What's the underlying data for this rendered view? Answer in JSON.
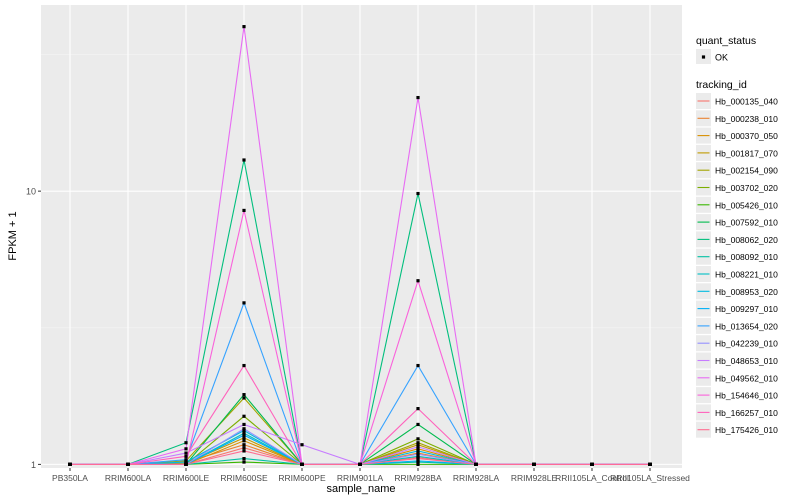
{
  "chart_data": {
    "type": "line",
    "title": "",
    "xlabel": "sample_name",
    "ylabel": "FPKM + 1",
    "y_scale": "log10",
    "ylim": [
      0.97,
      48
    ],
    "y_ticks": [
      1,
      10
    ],
    "y_tick_labels": [
      "1",
      "10"
    ],
    "grid": true,
    "legend_position": "right",
    "categories": [
      "PB350LA",
      "RRIM600LA",
      "RRIM600LE",
      "RRIM600SE",
      "RRIM600PE",
      "RRIM901LA",
      "RRIM928BA",
      "RRIM928LA",
      "RRIM928LE",
      "RRII105LA_Control",
      "RRII105LA_Stressed"
    ],
    "legend": {
      "quant_status_title": "quant_status",
      "quant_status_items": [
        "OK"
      ],
      "tracking_title": "tracking_id"
    },
    "series": [
      {
        "name": "Hb_000135_040",
        "color": "#F8766D",
        "values": [
          1,
          1,
          1.0,
          1.15,
          1,
          1,
          1.06,
          1,
          1,
          1,
          1
        ]
      },
      {
        "name": "Hb_000238_010",
        "color": "#EA8331",
        "values": [
          1,
          1,
          1.02,
          1.18,
          1,
          1,
          1.1,
          1,
          1,
          1,
          1
        ]
      },
      {
        "name": "Hb_000370_050",
        "color": "#D89000",
        "values": [
          1,
          1,
          1.0,
          1.22,
          1,
          1,
          1.14,
          1,
          1,
          1,
          1
        ]
      },
      {
        "name": "Hb_001817_070",
        "color": "#C09B00",
        "values": [
          1,
          1,
          1.01,
          1.25,
          1,
          1,
          1.18,
          1,
          1,
          1,
          1
        ]
      },
      {
        "name": "Hb_002154_090",
        "color": "#A3A500",
        "values": [
          1,
          1,
          1.03,
          1.75,
          1,
          1,
          1.2,
          1,
          1,
          1,
          1
        ]
      },
      {
        "name": "Hb_003702_020",
        "color": "#7CAE00",
        "values": [
          1,
          1,
          1.0,
          1.5,
          1,
          1,
          1.24,
          1,
          1,
          1,
          1
        ]
      },
      {
        "name": "Hb_005426_010",
        "color": "#39B600",
        "values": [
          1,
          1,
          1.0,
          1.02,
          1,
          1,
          1.0,
          1,
          1,
          1,
          1
        ]
      },
      {
        "name": "Hb_007592_010",
        "color": "#00BB4E",
        "values": [
          1,
          1,
          1.0,
          1.8,
          1,
          1,
          1.4,
          1,
          1,
          1,
          1
        ]
      },
      {
        "name": "Hb_008062_020",
        "color": "#00BF7D",
        "values": [
          1,
          1,
          1.2,
          13.0,
          1,
          1,
          9.8,
          1,
          1,
          1,
          1
        ]
      },
      {
        "name": "Hb_008092_010",
        "color": "#00C1A3",
        "values": [
          1,
          1,
          1.0,
          1.05,
          1,
          1,
          1.02,
          1,
          1,
          1,
          1
        ]
      },
      {
        "name": "Hb_008221_010",
        "color": "#00BFC4",
        "values": [
          1,
          1,
          1.0,
          1.3,
          1,
          1,
          1.07,
          1,
          1,
          1,
          1
        ]
      },
      {
        "name": "Hb_008953_020",
        "color": "#00BAE0",
        "values": [
          1,
          1,
          1.02,
          1.33,
          1,
          1,
          1.12,
          1,
          1,
          1,
          1
        ]
      },
      {
        "name": "Hb_009297_010",
        "color": "#00B0F6",
        "values": [
          1,
          1,
          1.0,
          1.28,
          1,
          1,
          1.03,
          1,
          1,
          1,
          1
        ]
      },
      {
        "name": "Hb_013654_020",
        "color": "#35A2FF",
        "values": [
          1,
          1,
          1.04,
          3.9,
          1,
          1,
          2.3,
          1,
          1,
          1,
          1
        ]
      },
      {
        "name": "Hb_042239_010",
        "color": "#9590FF",
        "values": [
          1,
          1,
          1.0,
          1.35,
          1,
          1,
          1.09,
          1,
          1,
          1,
          1
        ]
      },
      {
        "name": "Hb_048653_010",
        "color": "#C77CFF",
        "values": [
          1,
          1,
          1.1,
          1.4,
          1.18,
          1,
          1.16,
          1,
          1,
          1,
          1
        ]
      },
      {
        "name": "Hb_049562_010",
        "color": "#E76BF3",
        "values": [
          1,
          1,
          1.14,
          40.0,
          1,
          1,
          22.0,
          1,
          1,
          1,
          1
        ]
      },
      {
        "name": "Hb_154646_010",
        "color": "#FA62DB",
        "values": [
          1,
          1,
          1.0,
          8.5,
          1,
          1,
          4.7,
          1,
          1,
          1,
          1
        ]
      },
      {
        "name": "Hb_166257_010",
        "color": "#FF62BC",
        "values": [
          1,
          1,
          1.07,
          2.3,
          1,
          1,
          1.6,
          1,
          1,
          1,
          1
        ]
      },
      {
        "name": "Hb_175426_010",
        "color": "#FF6C91",
        "values": [
          1,
          1,
          1.0,
          1.12,
          1,
          1,
          1.05,
          1,
          1,
          1,
          1
        ]
      }
    ]
  }
}
